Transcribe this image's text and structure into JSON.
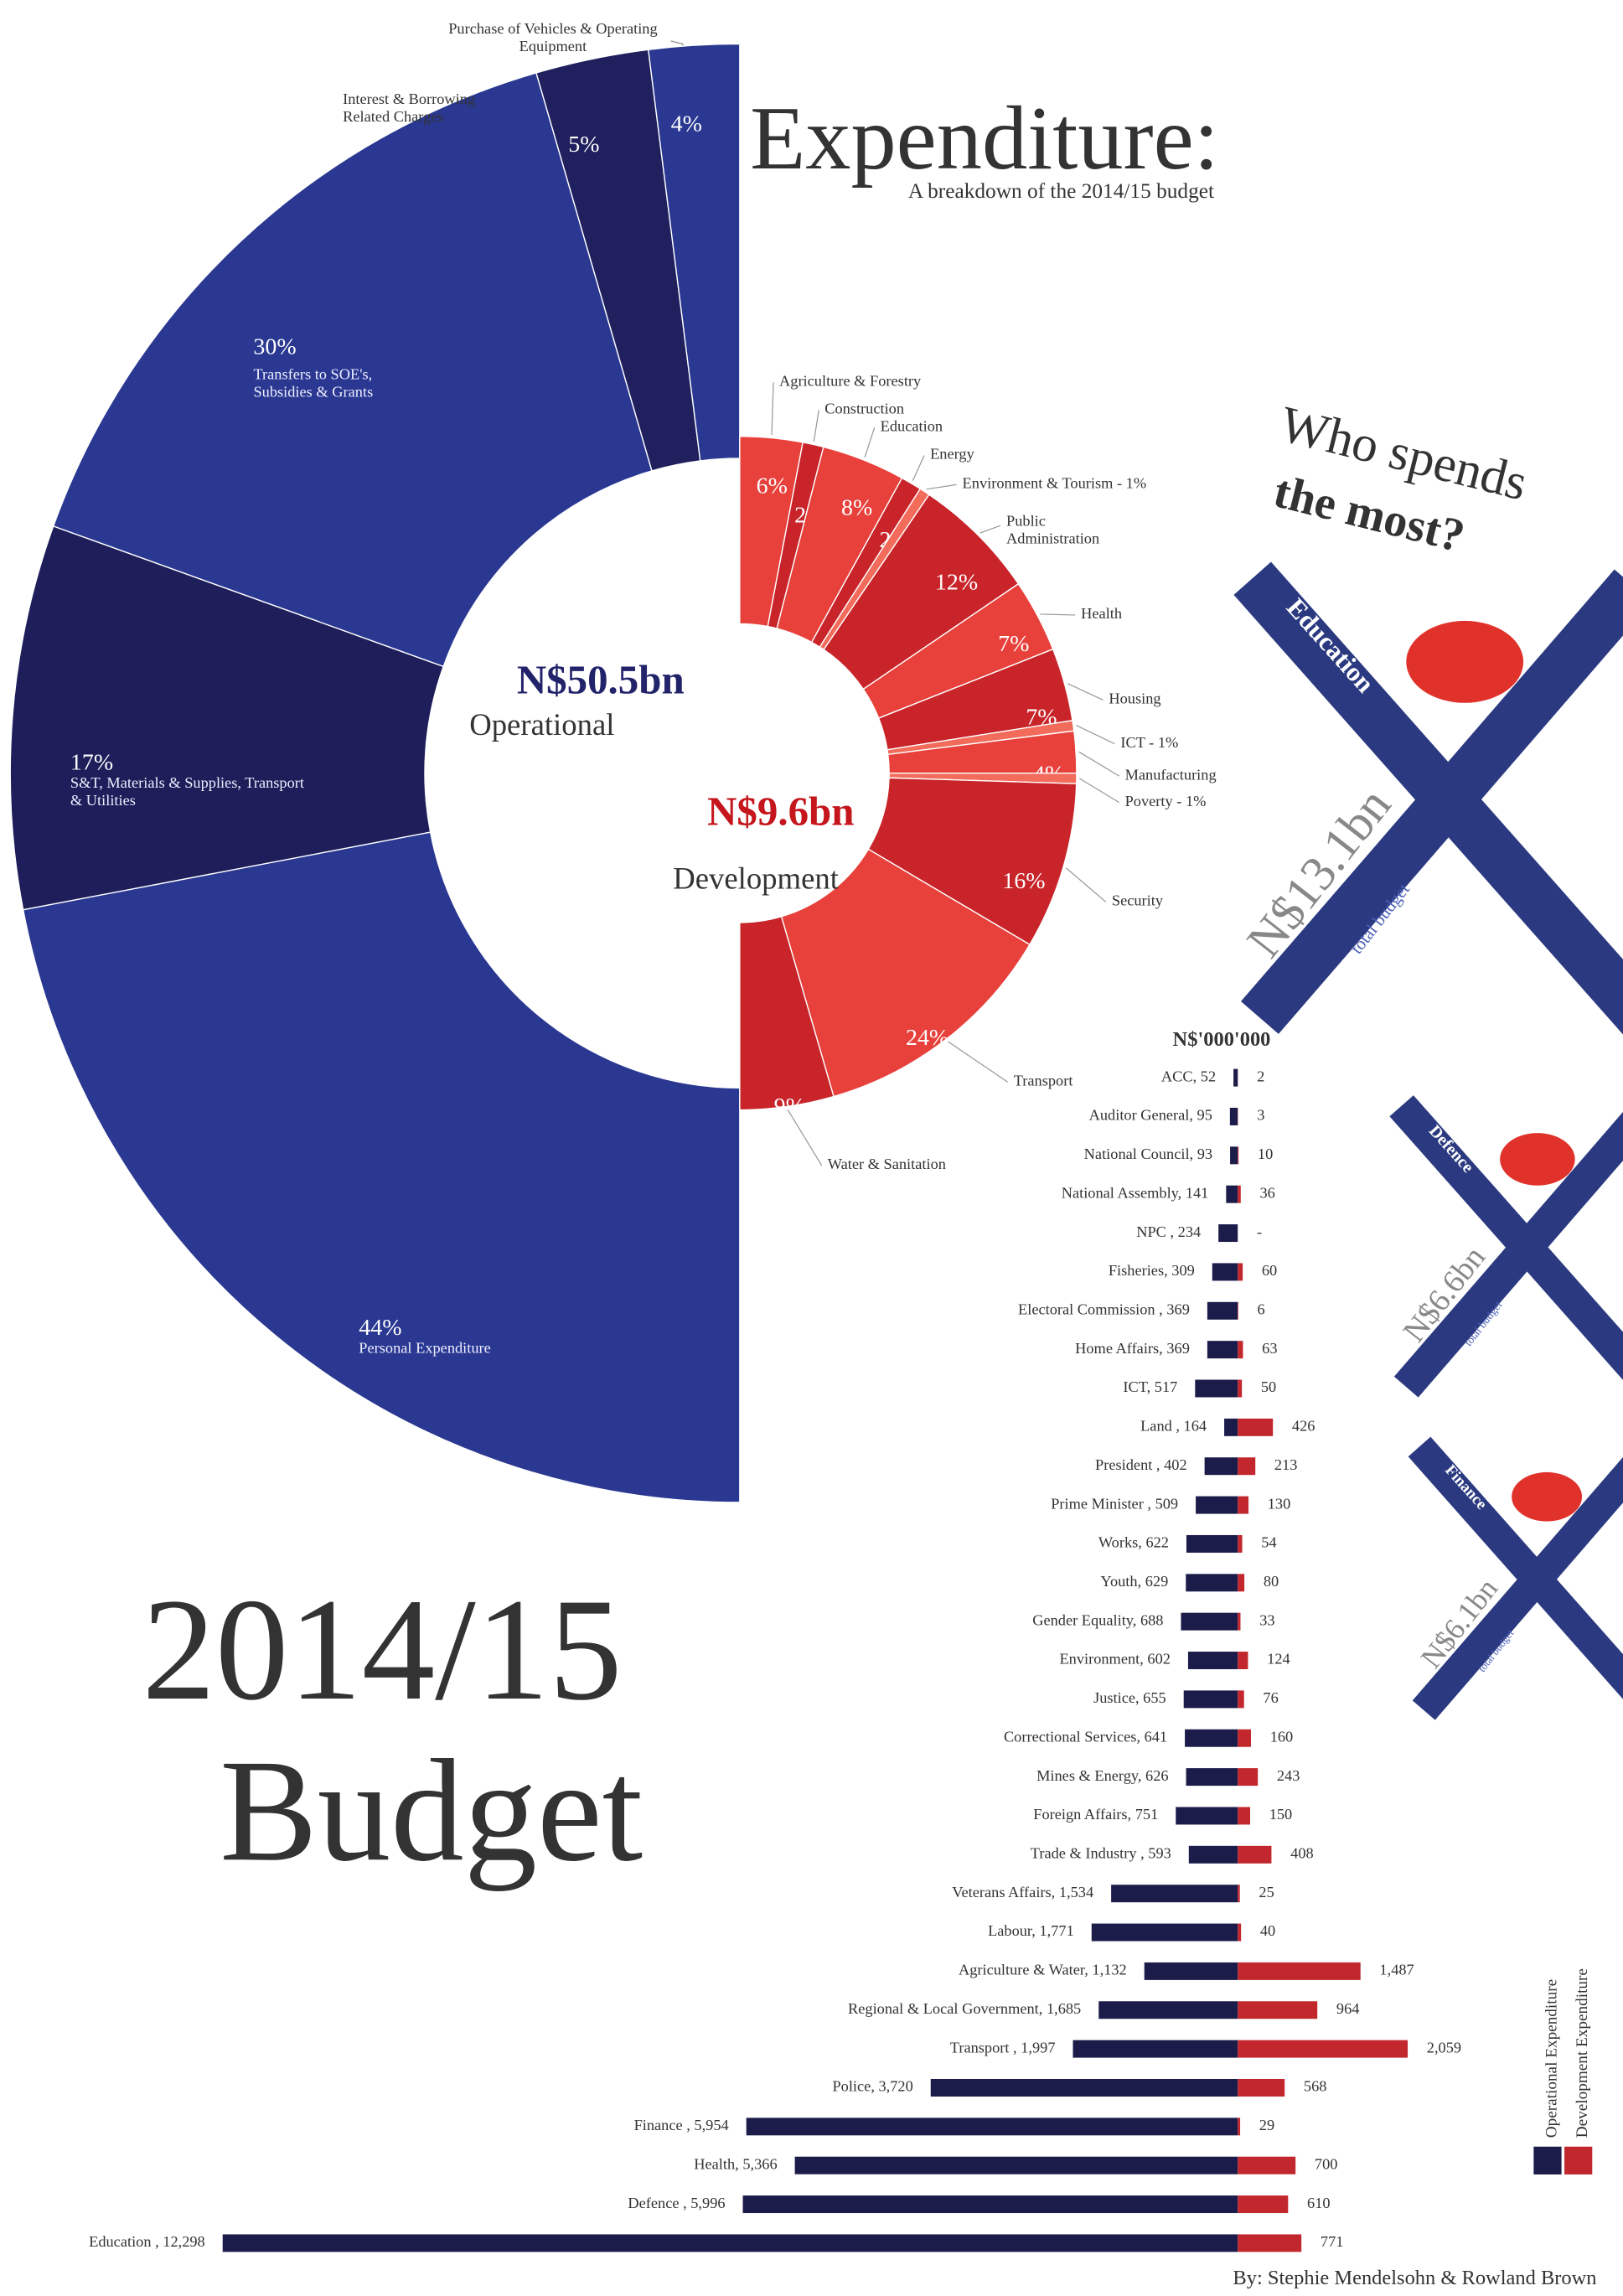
{
  "header": {
    "title": "Expenditure:",
    "subtitle": "A breakdown of the 2014/15 budget",
    "question_line1": "Who spends",
    "question_line2": "the most?"
  },
  "chart_data": [
    {
      "type": "donut",
      "half": "left",
      "title": "N$50.5bn",
      "subtitle": "Operational",
      "categories": [
        "Personal Expenditure",
        "S&T, Materials & Supplies, Transport & Utilities",
        "Transfers to SOE's, Subsidies & Grants",
        "Interest & Borrowing Related Charges",
        "Purchase of Vehicles & Operating Equipment"
      ],
      "values": [
        44,
        17,
        30,
        5,
        4
      ],
      "value_labels": [
        "44%",
        "17%",
        "30%",
        "5%",
        "4%"
      ],
      "colors": [
        "#2a3892",
        "#1e1e5a",
        "#2a3892",
        "#20205e",
        "#2a3892"
      ]
    },
    {
      "type": "donut",
      "half": "right",
      "title": "N$9.6bn",
      "subtitle": "Development",
      "categories": [
        "Agriculture & Forestry",
        "Construction",
        "Education",
        "Energy",
        "Environment & Tourism  - 1%",
        "Public Administration",
        "Health",
        "Housing",
        "ICT - 1%",
        "Manufacturing",
        "Poverty - 1%",
        "Security",
        "Transport",
        "Water & Sanitation"
      ],
      "values": [
        6,
        2,
        8,
        2,
        1,
        12,
        7,
        7,
        1,
        4,
        1,
        16,
        24,
        9
      ],
      "value_labels": [
        "6%",
        "2%",
        "8%",
        "2%",
        null,
        "12%",
        "7%",
        "7%",
        null,
        "4%",
        null,
        "16%",
        "24%",
        "9%"
      ],
      "colors": [
        "#e8403b",
        "#c8242a",
        "#e8403b",
        "#c8242a",
        "#f26b5b",
        "#c8242a",
        "#e8403b",
        "#c8242a",
        "#f26b5b",
        "#e8403b",
        "#f26b5b",
        "#c8242a",
        "#e8403b",
        "#c8242a"
      ]
    },
    {
      "type": "bar",
      "orientation": "diverging",
      "title": "N$'000'000",
      "categories": [
        "ACC, 52",
        "Auditor General, 95",
        "National Council, 93",
        "National Assembly, 141",
        "NPC , 234",
        "Fisheries, 309",
        "Electoral Commission , 369",
        "Home Affairs, 369",
        "ICT, 517",
        "Land , 164",
        "President , 402",
        "Prime Minister , 509",
        "Works, 622",
        "Youth, 629",
        "Gender Equality, 688",
        "Environment, 602",
        "Justice, 655",
        "Correctional Services, 641",
        "Mines & Energy, 626",
        "Foreign Affairs, 751",
        "Trade & Industry , 593",
        "Veterans Affairs, 1,534",
        "Labour, 1,771",
        "Agriculture & Water, 1,132",
        "Regional & Local Government, 1,685",
        "Transport , 1,997",
        "Police, 3,720",
        "Finance , 5,954",
        "Health, 5,366",
        "Defence , 5,996",
        "Education , 12,298"
      ],
      "series": [
        {
          "name": "Operational Expenditure",
          "color": "#1c1c4a",
          "values": [
            52,
            95,
            93,
            141,
            234,
            309,
            369,
            369,
            517,
            164,
            402,
            509,
            622,
            629,
            688,
            602,
            655,
            641,
            626,
            751,
            593,
            1534,
            1771,
            1132,
            1685,
            1997,
            3720,
            5954,
            5366,
            5996,
            12298
          ]
        },
        {
          "name": "Development Expenditure",
          "color": "#c1272d",
          "values": [
            2,
            3,
            10,
            36,
            null,
            60,
            6,
            63,
            50,
            426,
            213,
            130,
            54,
            80,
            33,
            124,
            76,
            160,
            243,
            150,
            408,
            25,
            40,
            1487,
            964,
            2059,
            568,
            29,
            700,
            610,
            771
          ],
          "value_labels": [
            "2",
            "3",
            "10",
            "36",
            "-",
            "60",
            "6",
            "63",
            "50",
            "426",
            "213",
            "130",
            "54",
            "80",
            "33",
            "124",
            "76",
            "160",
            "243",
            "150",
            "408",
            "25",
            "40",
            "1,487",
            "964",
            "2,059",
            "568",
            "29",
            "700",
            "610",
            "771"
          ]
        }
      ]
    }
  ],
  "highlights": [
    {
      "name": "Education",
      "amount": "N$13.1bn",
      "note": "total budget"
    },
    {
      "name": "Defence",
      "amount": "N$6.6bn",
      "note": "total budget"
    },
    {
      "name": "Finance",
      "amount": "N$6.1bn",
      "note": "total budget"
    }
  ],
  "poster": {
    "year": "2014/15",
    "word": "Budget"
  },
  "footer": {
    "credit": "By: Stephie Mendelsohn & Rowland Brown"
  }
}
